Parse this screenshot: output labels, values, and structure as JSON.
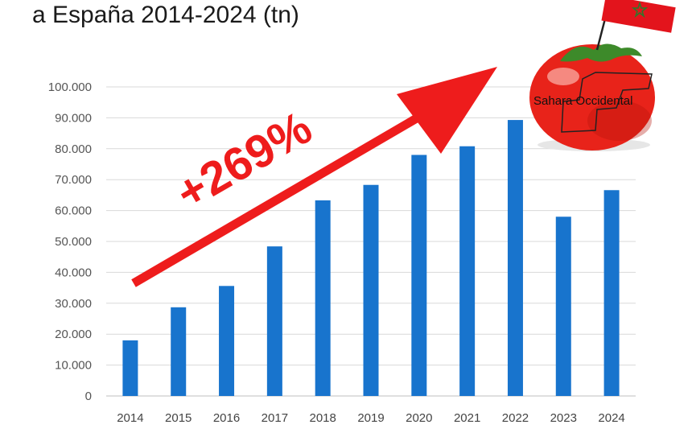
{
  "title": "a España 2014-2024 (tn)",
  "annotation": "+269%",
  "tomato_label": "Sahara Occidental",
  "colors": {
    "bar": "#1874cd",
    "grid": "#d9d9d9",
    "arrow": "#ee1c1c",
    "tomato": "#e8231a",
    "flag": "#e3141c"
  },
  "chart_data": {
    "type": "bar",
    "title": "a España 2014-2024 (tn)",
    "xlabel": "",
    "ylabel": "",
    "ylim": [
      0,
      100000
    ],
    "yticks": [
      "0",
      "10.000",
      "20.000",
      "30.000",
      "40.000",
      "50.000",
      "60.000",
      "70.000",
      "80.000",
      "90.000",
      "100.000"
    ],
    "grid": true,
    "categories": [
      "2014",
      "2015",
      "2016",
      "2017",
      "2018",
      "2019",
      "2020",
      "2021",
      "2022",
      "2023",
      "2024"
    ],
    "values": [
      18000,
      28700,
      35600,
      48400,
      63300,
      68300,
      78000,
      80800,
      89300,
      58000,
      66600
    ]
  }
}
